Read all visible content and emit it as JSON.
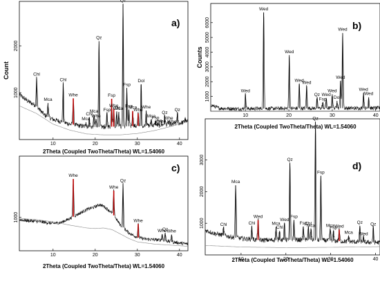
{
  "chart_data": [
    {
      "id": "a",
      "type": "line",
      "panel_label": "a)",
      "xlabel": "2Theta (Coupled TwoTheta/Theta) WL=1.54060",
      "ylabel": "Count",
      "xlim": [
        2,
        42
      ],
      "ylim": [
        0,
        2950
      ],
      "x_ticks": [
        10,
        20,
        30,
        40
      ],
      "y_ticks": [
        1000,
        2000
      ],
      "x_tick_labels": [
        "10",
        "20",
        "30",
        "40"
      ],
      "y_tick_labels": [
        "1000",
        "2000"
      ],
      "baseline": [
        [
          2,
          720
        ],
        [
          6,
          560
        ],
        [
          10,
          330
        ],
        [
          14,
          200
        ],
        [
          18,
          120
        ],
        [
          22,
          100
        ],
        [
          26,
          100
        ],
        [
          30,
          130
        ],
        [
          34,
          190
        ],
        [
          38,
          280
        ],
        [
          42,
          380
        ]
      ],
      "background": [
        [
          2,
          960
        ],
        [
          4,
          820
        ],
        [
          6,
          720
        ],
        [
          8,
          520
        ],
        [
          10,
          430
        ],
        [
          14,
          330
        ],
        [
          18,
          270
        ],
        [
          22,
          270
        ],
        [
          26,
          280
        ],
        [
          30,
          290
        ],
        [
          34,
          300
        ],
        [
          38,
          330
        ],
        [
          40,
          350
        ],
        [
          41.5,
          380
        ]
      ],
      "peaks": [
        {
          "x": 6.1,
          "y": 1320,
          "label": "Chl"
        },
        {
          "x": 8.8,
          "y": 780,
          "label": "Mca"
        },
        {
          "x": 12.4,
          "y": 1200,
          "label": "Chl"
        },
        {
          "x": 14.8,
          "y": 880,
          "label": "Whe",
          "red": true
        },
        {
          "x": 17.8,
          "y": 370,
          "label": "Mca"
        },
        {
          "x": 18.6,
          "y": 470,
          "label": "Chl"
        },
        {
          "x": 19.7,
          "y": 530,
          "label": "Mca"
        },
        {
          "x": 20.2,
          "y": 430,
          "label": "Whe"
        },
        {
          "x": 20.9,
          "y": 2100,
          "label": "Qz"
        },
        {
          "x": 22.8,
          "y": 560,
          "label": "Fsp"
        },
        {
          "x": 23.9,
          "y": 870,
          "label": "Fsp",
          "red": true
        },
        {
          "x": 24.4,
          "y": 650,
          "label": "Whe",
          "red": true
        },
        {
          "x": 25.1,
          "y": 600,
          "label": "Chl"
        },
        {
          "x": 25.6,
          "y": 590,
          "label": "Mca"
        },
        {
          "x": 26.6,
          "y": 2900,
          "label": "Qz"
        },
        {
          "x": 27.5,
          "y": 1100,
          "label": "Fsp"
        },
        {
          "x": 28.0,
          "y": 640,
          "label": "Fsp"
        },
        {
          "x": 28.9,
          "y": 610,
          "label": "Mca",
          "red": true
        },
        {
          "x": 30.2,
          "y": 560,
          "label": "Whe",
          "red": true
        },
        {
          "x": 30.9,
          "y": 1180,
          "label": "Dol"
        },
        {
          "x": 32.1,
          "y": 620,
          "label": "Whe"
        },
        {
          "x": 33.3,
          "y": 430,
          "label": "Mca"
        },
        {
          "x": 34.3,
          "y": 390,
          "label": "Fsp"
        },
        {
          "x": 35.2,
          "y": 300,
          "label": "Chl"
        },
        {
          "x": 35.7,
          "y": 320,
          "label": "Whe"
        },
        {
          "x": 36.5,
          "y": 500,
          "label": "Qz"
        },
        {
          "x": 37.4,
          "y": 380,
          "label": "Whe"
        },
        {
          "x": 38.2,
          "y": 310,
          "label": "Whe"
        },
        {
          "x": 39.5,
          "y": 560,
          "label": "Qz"
        },
        {
          "x": 41.3,
          "y": 450,
          "label": ""
        }
      ]
    },
    {
      "id": "b",
      "type": "line",
      "panel_label": "b)",
      "xlabel": "2Theta (Coupled TwoTheta/Theta) WL=1.54060",
      "ylabel": "Counts",
      "xlim": [
        2,
        41
      ],
      "ylim": [
        0,
        7300
      ],
      "x_ticks": [
        10,
        20,
        30,
        40
      ],
      "y_ticks": [
        1000,
        2000,
        3000,
        4000,
        5000,
        6000
      ],
      "x_tick_labels": [
        "10",
        "20",
        "30",
        "40"
      ],
      "y_tick_labels": [
        "1000",
        "2000",
        "3000",
        "4000",
        "5000",
        "6000"
      ],
      "baseline": [
        [
          2,
          0
        ],
        [
          41,
          0
        ]
      ],
      "background": [
        [
          2,
          420
        ],
        [
          4,
          200
        ],
        [
          8,
          160
        ],
        [
          14,
          180
        ],
        [
          20,
          190
        ],
        [
          26,
          200
        ],
        [
          32,
          210
        ],
        [
          38,
          200
        ],
        [
          41,
          220
        ]
      ],
      "peaks": [
        {
          "x": 10.0,
          "y": 1150,
          "label": "Wed"
        },
        {
          "x": 14.2,
          "y": 6700,
          "label": "Wed"
        },
        {
          "x": 20.1,
          "y": 3800,
          "label": "Wed"
        },
        {
          "x": 22.4,
          "y": 1850,
          "label": "Wed"
        },
        {
          "x": 24.1,
          "y": 1700,
          "label": "Wed"
        },
        {
          "x": 26.5,
          "y": 880,
          "label": "Qz"
        },
        {
          "x": 27.8,
          "y": 580,
          "label": "Fsp"
        },
        {
          "x": 28.6,
          "y": 900,
          "label": "Wed"
        },
        {
          "x": 30.0,
          "y": 1150,
          "label": "Wed"
        },
        {
          "x": 31.1,
          "y": 700,
          "label": "Dol"
        },
        {
          "x": 31.9,
          "y": 2050,
          "label": "Wed"
        },
        {
          "x": 32.4,
          "y": 5300,
          "label": "Wed"
        },
        {
          "x": 37.2,
          "y": 1250,
          "label": "Wed"
        },
        {
          "x": 38.4,
          "y": 950,
          "label": "Wed"
        }
      ]
    },
    {
      "id": "c",
      "type": "line",
      "panel_label": "c)",
      "xlabel": "2Theta (Coupled TwoTheta/Theta) WL=1.54060",
      "ylabel": "",
      "xlim": [
        2,
        42
      ],
      "ylim": [
        400,
        2100
      ],
      "x_ticks": [
        10,
        20,
        30,
        40
      ],
      "y_ticks": [
        1000
      ],
      "x_tick_labels": [
        "10",
        "20",
        "30",
        "40"
      ],
      "y_tick_labels": [
        "1000"
      ],
      "baseline": [
        [
          2,
          980
        ],
        [
          6,
          960
        ],
        [
          10,
          920
        ],
        [
          14,
          860
        ],
        [
          18,
          810
        ],
        [
          20,
          800
        ],
        [
          22,
          810
        ],
        [
          24,
          780
        ],
        [
          26,
          700
        ],
        [
          28,
          620
        ],
        [
          30,
          560
        ],
        [
          34,
          520
        ],
        [
          38,
          500
        ],
        [
          42,
          480
        ]
      ],
      "background": [
        [
          2,
          960
        ],
        [
          4,
          940
        ],
        [
          6,
          930
        ],
        [
          8,
          910
        ],
        [
          10,
          890
        ],
        [
          12,
          910
        ],
        [
          14,
          980
        ],
        [
          16,
          1060
        ],
        [
          18,
          1140
        ],
        [
          20,
          1190
        ],
        [
          21,
          1230
        ],
        [
          22,
          1200
        ],
        [
          24,
          1080
        ],
        [
          26,
          860
        ],
        [
          28,
          720
        ],
        [
          30,
          640
        ],
        [
          32,
          610
        ],
        [
          34,
          600
        ],
        [
          36,
          590
        ],
        [
          38,
          560
        ],
        [
          40,
          540
        ],
        [
          42,
          520
        ]
      ],
      "peaks": [
        {
          "x": 14.8,
          "y": 1690,
          "label": "Whe",
          "red": true
        },
        {
          "x": 24.4,
          "y": 1480,
          "label": "Whe",
          "red": true
        },
        {
          "x": 26.6,
          "y": 1600,
          "label": "Qz"
        },
        {
          "x": 30.2,
          "y": 880,
          "label": "Whe",
          "red": true
        },
        {
          "x": 35.9,
          "y": 700,
          "label": "Whe"
        },
        {
          "x": 36.6,
          "y": 720,
          "label": "Qz"
        },
        {
          "x": 38.1,
          "y": 690,
          "label": "Whe"
        }
      ]
    },
    {
      "id": "d",
      "type": "line",
      "panel_label": "d)",
      "xlabel": "2Theta (Coupled TwoTheta/Theta) WL=1.54060",
      "ylabel": "",
      "xlim": [
        2,
        41
      ],
      "ylim": [
        0,
        4300
      ],
      "x_ticks": [
        10,
        20,
        30,
        40
      ],
      "y_ticks": [
        1000,
        2000,
        3000
      ],
      "x_tick_labels": [
        "10",
        "20",
        "30",
        "40"
      ],
      "y_tick_labels": [
        "1000",
        "2000",
        "3000"
      ],
      "baseline": [
        [
          2,
          300
        ],
        [
          10,
          250
        ],
        [
          20,
          230
        ],
        [
          30,
          240
        ],
        [
          41,
          260
        ]
      ],
      "background": [
        [
          2,
          780
        ],
        [
          4,
          680
        ],
        [
          6,
          620
        ],
        [
          8,
          560
        ],
        [
          10,
          520
        ],
        [
          14,
          470
        ],
        [
          18,
          470
        ],
        [
          22,
          480
        ],
        [
          26,
          470
        ],
        [
          30,
          450
        ],
        [
          34,
          420
        ],
        [
          38,
          400
        ],
        [
          41,
          390
        ]
      ],
      "peaks": [
        {
          "x": 6.1,
          "y": 850,
          "label": "Chl"
        },
        {
          "x": 8.8,
          "y": 2200,
          "label": "Mca"
        },
        {
          "x": 12.4,
          "y": 900,
          "label": "Chl"
        },
        {
          "x": 13.8,
          "y": 1100,
          "label": "Wed",
          "red": true
        },
        {
          "x": 17.8,
          "y": 880,
          "label": "Mca"
        },
        {
          "x": 18.6,
          "y": 760,
          "label": "Chl"
        },
        {
          "x": 19.7,
          "y": 1000,
          "label": "Wed"
        },
        {
          "x": 20.9,
          "y": 2900,
          "label": "Qz"
        },
        {
          "x": 21.8,
          "y": 1100,
          "label": "Fsp"
        },
        {
          "x": 23.9,
          "y": 900,
          "label": "Fsp"
        },
        {
          "x": 25.0,
          "y": 880,
          "label": "Chl"
        },
        {
          "x": 25.6,
          "y": 820,
          "label": "Mca"
        },
        {
          "x": 26.6,
          "y": 4200,
          "label": "Qz"
        },
        {
          "x": 27.8,
          "y": 2500,
          "label": "Fsp"
        },
        {
          "x": 29.9,
          "y": 820,
          "label": "Mca"
        },
        {
          "x": 30.6,
          "y": 750,
          "label": "Fsp"
        },
        {
          "x": 31.9,
          "y": 800,
          "label": "Wed",
          "red": true
        },
        {
          "x": 34.0,
          "y": 600,
          "label": "Mca"
        },
        {
          "x": 36.5,
          "y": 920,
          "label": "Qz"
        },
        {
          "x": 37.3,
          "y": 560,
          "label": "Wed"
        },
        {
          "x": 39.5,
          "y": 860,
          "label": "Qz"
        }
      ]
    }
  ]
}
